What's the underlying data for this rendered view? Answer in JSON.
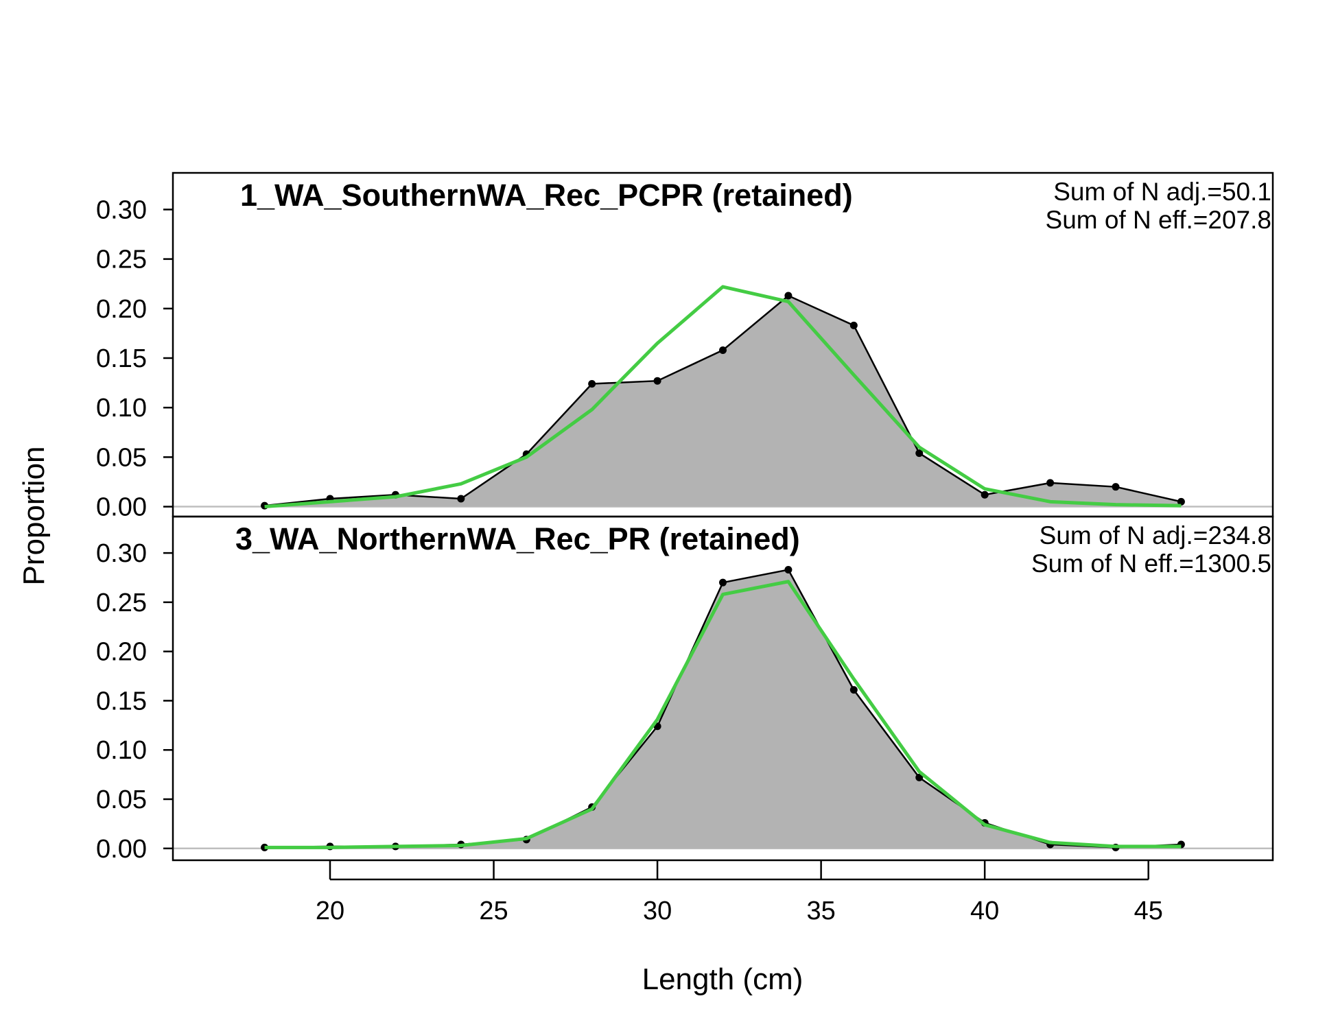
{
  "chart_data": {
    "type": "area",
    "xlabel": "Length (cm)",
    "ylabel": "Proportion",
    "xlim": [
      15.2,
      48.8
    ],
    "x_ticks": [
      "20",
      "25",
      "30",
      "35",
      "40",
      "45"
    ],
    "y_ticks": [
      "0.00",
      "0.05",
      "0.10",
      "0.15",
      "0.20",
      "0.25",
      "0.30"
    ],
    "colors": {
      "observed_fill": "#b3b3b3",
      "observed_line": "#000000",
      "expected_line": "#44cc44",
      "zero_line": "#bebebe"
    },
    "panels": [
      {
        "title": "1_WA_SouthernWA_Rec_PCPR (retained)",
        "stats": [
          "Sum of N adj.=50.1",
          "Sum of N eff.=207.8"
        ],
        "ylim": [
          -0.01,
          0.337
        ],
        "x": [
          18,
          20,
          22,
          24,
          26,
          28,
          30,
          32,
          34,
          36,
          38,
          40,
          42,
          44,
          46
        ],
        "series": [
          {
            "values": [
              0.001,
              0.008,
              0.012,
              0.008,
              0.053,
              0.124,
              0.127,
              0.158,
              0.213,
              0.183,
              0.054,
              0.012,
              0.024,
              0.02,
              0.005
            ]
          },
          {
            "values": [
              0.0,
              0.005,
              0.01,
              0.023,
              0.05,
              0.098,
              0.165,
              0.222,
              0.207,
              0.133,
              0.06,
              0.018,
              0.005,
              0.002,
              0.001
            ]
          }
        ]
      },
      {
        "title": "3_WA_NorthernWA_Rec_PR (retained)",
        "stats": [
          "Sum of N adj.=234.8",
          "Sum of N eff.=1300.5"
        ],
        "ylim": [
          -0.012,
          0.337
        ],
        "x": [
          18,
          20,
          22,
          24,
          26,
          28,
          30,
          32,
          34,
          36,
          38,
          40,
          42,
          44,
          46
        ],
        "series": [
          {
            "values": [
              0.001,
              0.002,
              0.002,
              0.004,
              0.009,
              0.042,
              0.124,
              0.27,
              0.283,
              0.161,
              0.072,
              0.026,
              0.004,
              0.001,
              0.004
            ]
          },
          {
            "values": [
              0.001,
              0.001,
              0.002,
              0.003,
              0.01,
              0.04,
              0.131,
              0.258,
              0.271,
              0.172,
              0.078,
              0.024,
              0.006,
              0.002,
              0.002
            ]
          }
        ]
      }
    ]
  }
}
